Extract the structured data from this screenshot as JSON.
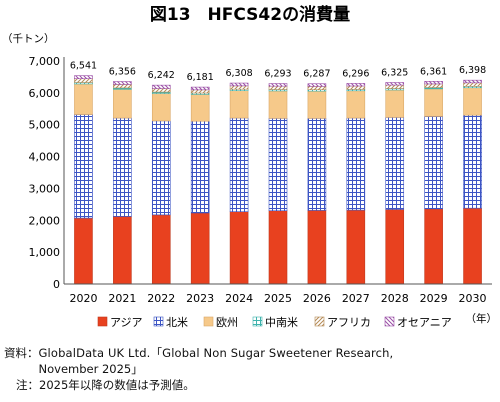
{
  "chart_data": {
    "type": "bar",
    "stacked": true,
    "title": "図13　HFCS42の消費量",
    "ylabel": "（千トン）",
    "xlabel": "（年）",
    "ylim": [
      0,
      7000
    ],
    "yticks": [
      "0",
      "1,000",
      "2,000",
      "3,000",
      "4,000",
      "5,000",
      "6,000",
      "7,000"
    ],
    "categories": [
      "2020",
      "2021",
      "2022",
      "2023",
      "2024",
      "2025",
      "2026",
      "2027",
      "2028",
      "2029",
      "2030"
    ],
    "totals": [
      "6,541",
      "6,356",
      "6,242",
      "6,181",
      "6,308",
      "6,293",
      "6,287",
      "6,296",
      "6,325",
      "6,361",
      "6,398"
    ],
    "grid": false,
    "legend_position": "bottom",
    "series": [
      {
        "name": "アジア",
        "color": "#e8411f",
        "pattern": "solid",
        "values": [
          2070,
          2120,
          2170,
          2230,
          2270,
          2300,
          2310,
          2320,
          2340,
          2360,
          2380
        ]
      },
      {
        "name": "北米",
        "color": "#4a5fc9",
        "pattern": "grid",
        "values": [
          3250,
          3090,
          2950,
          2880,
          2940,
          2900,
          2890,
          2890,
          2890,
          2900,
          2920
        ]
      },
      {
        "name": "欧州",
        "color": "#f6c98a",
        "pattern": "solid",
        "values": [
          960,
          900,
          860,
          840,
          860,
          860,
          855,
          855,
          860,
          865,
          860
        ]
      },
      {
        "name": "中南米",
        "color": "#8fd3cf",
        "pattern": "grid",
        "values": [
          45,
          45,
          45,
          45,
          45,
          45,
          45,
          45,
          45,
          45,
          45
        ]
      },
      {
        "name": "アフリカ",
        "color": "#c9a374",
        "pattern": "diagonal",
        "values": [
          120,
          110,
          110,
          100,
          105,
          105,
          105,
          105,
          110,
          110,
          110
        ]
      },
      {
        "name": "オセアニア",
        "color": "#b06fb8",
        "pattern": "diagonal",
        "values": [
          96,
          91,
          107,
          86,
          88,
          83,
          82,
          81,
          80,
          81,
          83
        ]
      }
    ]
  },
  "source_label": "資料：",
  "source_text_line1": "GlobalData UK Ltd.「Global Non Sugar Sweetener Research,",
  "source_text_line2": "November 2025」",
  "note_label": "注：",
  "note_text": "2025年以降の数値は予測値。"
}
